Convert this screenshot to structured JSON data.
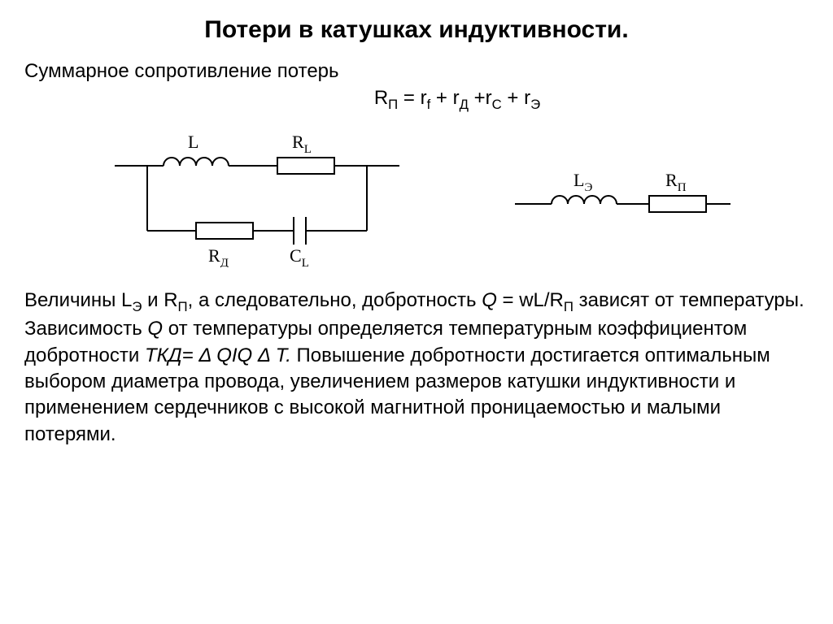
{
  "title": "Потери в катушках индуктивности.",
  "subtitle": "Суммарное сопротивление потерь",
  "formula_html": "R<sub>П</sub> = r<sub>f</sub> + r<sub>Д</sub> +r<sub>С</sub> + r<sub>Э</sub>",
  "description_html": "Величины L<sub>Э</sub> и R<sub>П</sub>, а следовательно, добротность <span class=\"italic\">Q</span> = wL/R<sub>П</sub>  зависят от температуры. Зависимость <span class=\"italic\">Q</span> от температуры определяется температурным коэффициентом добротности <span class=\"italic\">ТКД= Δ QIQ Δ T.</span> Повышение добротности достигается оптимальным выбором диаметра провода, увеличением размеров катушки индуктивности и применением сердечников с высокой магнитной проницаемостью и малыми потерями.",
  "circuit_left": {
    "labels": {
      "L": "L",
      "RL": "R",
      "RL_sub": "L",
      "RD": "R",
      "RD_sub": "Д",
      "CL": "C",
      "CL_sub": "L"
    },
    "stroke_color": "#000000",
    "stroke_width": 2,
    "font_family": "Times New Roman, serif",
    "font_size": 22
  },
  "circuit_right": {
    "labels": {
      "LE": "L",
      "LE_sub": "Э",
      "RP": "R",
      "RP_sub": "П"
    },
    "stroke_color": "#000000",
    "stroke_width": 2,
    "font_family": "Times New Roman, serif",
    "font_size": 22
  }
}
